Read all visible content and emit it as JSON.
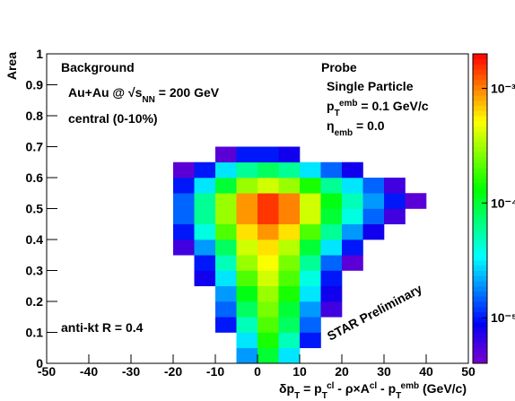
{
  "chart_data": {
    "type": "heatmap",
    "xlabel": [
      {
        "text": "δp"
      },
      {
        "text": "T",
        "pos": "sub"
      },
      {
        "text": " = p"
      },
      {
        "text": "T",
        "pos": "sub"
      },
      {
        "text": "cl",
        "pos": "super"
      },
      {
        "text": " - ρ×A"
      },
      {
        "text": "cl",
        "pos": "super"
      },
      {
        "text": " - p"
      },
      {
        "text": "T",
        "pos": "sub"
      },
      {
        "text": "emb",
        "pos": "super"
      },
      {
        "text": " (GeV/c)"
      }
    ],
    "ylabel": "Area",
    "annotations": [
      {
        "segments": [
          {
            "text": "Background"
          }
        ]
      },
      {
        "segments": [
          {
            "text": "Au+Au @ √"
          },
          {
            "text": "s"
          },
          {
            "text": "NN",
            "pos": "sub"
          },
          {
            "text": " = 200 GeV"
          }
        ]
      },
      {
        "segments": [
          {
            "text": "central (0-10%)"
          }
        ]
      },
      {
        "segments": [
          {
            "text": "Probe"
          }
        ]
      },
      {
        "segments": [
          {
            "text": "Single Particle"
          }
        ]
      },
      {
        "segments": [
          {
            "text": "p"
          },
          {
            "text": "T",
            "pos": "sub"
          },
          {
            "text": "emb",
            "pos": "super"
          },
          {
            "text": " = 0.1 GeV/c"
          }
        ]
      },
      {
        "segments": [
          {
            "text": "η"
          },
          {
            "text": "emb",
            "pos": "sub"
          },
          {
            "text": " = 0.0"
          }
        ]
      },
      {
        "segments": [
          {
            "text": "anti-kt  R = 0.4"
          }
        ]
      },
      {
        "segments": [
          {
            "text": "STAR Preliminary"
          }
        ],
        "color": "#e8161b"
      }
    ],
    "x_bins": [
      -25,
      -20,
      -15,
      -10,
      -5,
      0,
      5,
      10,
      15,
      20,
      25,
      30,
      35,
      40,
      45
    ],
    "y_bins": [
      0,
      0.05,
      0.1,
      0.15,
      0.2,
      0.25,
      0.3,
      0.35,
      0.4,
      0.45,
      0.5,
      0.55,
      0.6,
      0.65,
      0.7
    ],
    "z": [
      [
        null,
        null,
        null,
        null,
        2e-05,
        0.0001,
        3e-05,
        null,
        null,
        null,
        null,
        null,
        null,
        null
      ],
      [
        null,
        null,
        null,
        null,
        3e-05,
        0.00015,
        5e-05,
        1e-05,
        null,
        null,
        null,
        null,
        null,
        null
      ],
      [
        null,
        null,
        null,
        1e-05,
        5e-05,
        0.0002,
        8e-05,
        1.5e-05,
        null,
        null,
        null,
        null,
        null,
        null
      ],
      [
        null,
        null,
        null,
        1.5e-05,
        8e-05,
        0.00025,
        0.0001,
        2e-05,
        6e-06,
        null,
        null,
        null,
        null,
        null
      ],
      [
        null,
        null,
        null,
        2e-05,
        0.00012,
        0.0003,
        0.00015,
        3e-05,
        8e-06,
        null,
        null,
        null,
        null,
        null
      ],
      [
        null,
        null,
        8e-06,
        3e-05,
        0.0002,
        0.0004,
        0.0002,
        4e-05,
        1e-05,
        null,
        null,
        null,
        null,
        null
      ],
      [
        null,
        null,
        1e-05,
        5e-05,
        0.0003,
        0.0005,
        0.00025,
        6e-05,
        1.5e-05,
        5e-06,
        null,
        null,
        null,
        null
      ],
      [
        null,
        6e-06,
        2e-05,
        8e-05,
        0.0004,
        0.0006,
        0.00035,
        0.0001,
        3e-05,
        1e-05,
        null,
        null,
        null,
        null
      ],
      [
        null,
        1e-05,
        4e-05,
        0.0002,
        0.0006,
        0.0009,
        0.0006,
        0.0002,
        6e-05,
        2e-05,
        8e-06,
        null,
        null,
        null
      ],
      [
        null,
        1.5e-05,
        6e-05,
        0.0003,
        0.0009,
        0.0015,
        0.001,
        0.0004,
        0.0001,
        4e-05,
        1.5e-05,
        6e-06,
        null,
        null
      ],
      [
        null,
        1.5e-05,
        6e-05,
        0.0003,
        0.0009,
        0.0015,
        0.001,
        0.0004,
        0.00012,
        5e-05,
        2e-05,
        1e-05,
        5e-06,
        null
      ],
      [
        null,
        1e-05,
        3e-05,
        0.0001,
        0.0003,
        0.0004,
        0.0003,
        0.00015,
        6e-05,
        3e-05,
        1.5e-05,
        6e-06,
        null,
        null
      ],
      [
        null,
        5e-06,
        1e-05,
        3e-05,
        6e-05,
        8e-05,
        6e-05,
        3e-05,
        1.5e-05,
        8e-06,
        null,
        null,
        null,
        null
      ],
      [
        null,
        null,
        null,
        5e-06,
        1e-05,
        1e-05,
        8e-06,
        null,
        null,
        null,
        null,
        null,
        null,
        null
      ]
    ],
    "xlim": [
      -50,
      50
    ],
    "ylim": [
      0,
      1
    ],
    "xticks": [
      -50,
      -40,
      -30,
      -20,
      -10,
      0,
      10,
      20,
      30,
      40,
      50
    ],
    "yticks": [
      0,
      0.1,
      0.2,
      0.3,
      0.4,
      0.5,
      0.6,
      0.7,
      0.8,
      0.9,
      1
    ],
    "zlim": [
      4e-06,
      0.002
    ],
    "zscale": "log",
    "zticks": [
      {
        "value": 1e-05,
        "label": "10⁻⁵"
      },
      {
        "value": 0.0001,
        "label": "10⁻⁴"
      },
      {
        "value": 0.001,
        "label": "10⁻³"
      }
    ]
  }
}
